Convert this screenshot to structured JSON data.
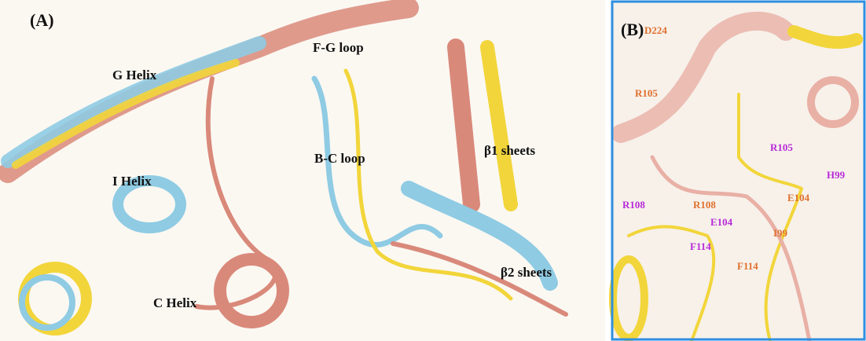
{
  "panel_a": {
    "label": "(A)",
    "annotations": [
      "F-G loop",
      "G Helix",
      "B-C loop",
      "β1 sheets",
      "I Helix",
      "β2 sheets",
      "C Helix"
    ]
  },
  "panel_b": {
    "label": "(B)",
    "annotations": [
      "D224",
      "R105",
      "R105",
      "H99",
      "E104",
      "R108",
      "R108",
      "E104",
      "I99",
      "F114",
      "F114"
    ]
  }
}
